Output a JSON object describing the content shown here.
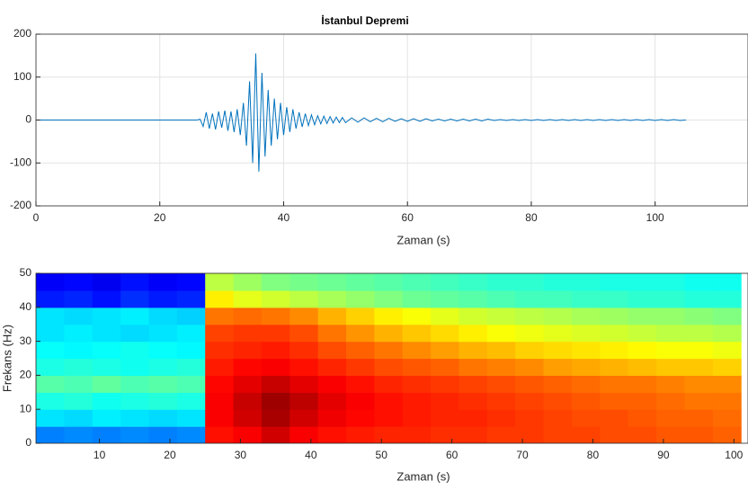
{
  "chart_data": [
    {
      "type": "line",
      "title": "İstanbul Depremi",
      "xlabel": "Zaman (s)",
      "color": "#0072bd",
      "grid": true,
      "xlim": [
        0,
        115
      ],
      "xticks": [
        0,
        20,
        40,
        60,
        80,
        100
      ],
      "ylim": [
        -200,
        200
      ],
      "yticks": [
        -200,
        -100,
        0,
        100,
        200
      ],
      "x": [
        0,
        26,
        26.5,
        27,
        27.5,
        28,
        28.5,
        29,
        29.5,
        30,
        30.5,
        31,
        31.5,
        32,
        32.5,
        33,
        33.5,
        34,
        34.5,
        35,
        35.5,
        36,
        36.5,
        37,
        37.5,
        38,
        38.5,
        39,
        39.5,
        40,
        40.5,
        41,
        41.5,
        42,
        42.5,
        43,
        43.5,
        44,
        44.5,
        45,
        45.5,
        46,
        46.5,
        47,
        47.5,
        48,
        48.5,
        49,
        49.5,
        50,
        51,
        52,
        53,
        54,
        55,
        56,
        57,
        58,
        59,
        60,
        61,
        62,
        63,
        64,
        65,
        66,
        67,
        68,
        69,
        70,
        71,
        72,
        73,
        74,
        75,
        76,
        77,
        78,
        79,
        80,
        81,
        82,
        83,
        84,
        85,
        86,
        87,
        88,
        89,
        90,
        91,
        92,
        93,
        94,
        95,
        96,
        97,
        98,
        99,
        100,
        101,
        102,
        103,
        104,
        105
      ],
      "values": [
        0,
        0,
        2,
        -15,
        18,
        -20,
        15,
        -22,
        20,
        -18,
        22,
        -25,
        20,
        -28,
        25,
        -35,
        40,
        -60,
        90,
        -100,
        155,
        -120,
        110,
        -85,
        70,
        -60,
        50,
        -45,
        40,
        -35,
        30,
        -28,
        25,
        -20,
        18,
        -16,
        15,
        -13,
        12,
        -11,
        10,
        -9,
        9,
        -8,
        8,
        -7,
        7,
        -6,
        6,
        -6,
        5,
        -5,
        5,
        -4,
        4,
        -4,
        4,
        -3,
        3,
        -3,
        3,
        -3,
        3,
        -2,
        2,
        -2,
        2,
        -2,
        2,
        -2,
        2,
        -2,
        2,
        -1,
        1,
        -1,
        1,
        -1,
        1,
        -1,
        1,
        -1,
        1,
        -1,
        1,
        -1,
        1,
        -1,
        1,
        -1,
        1,
        -1,
        1,
        -1,
        1,
        -1,
        1,
        -1,
        1,
        -1,
        1,
        -1,
        1,
        -1,
        0
      ]
    },
    {
      "type": "heatmap",
      "xlabel": "Zaman (s)",
      "ylabel": "Frekans (Hz)",
      "colormap": "jet",
      "clim": [
        0,
        10
      ],
      "xlim": [
        1,
        102
      ],
      "xticks": [
        10,
        20,
        30,
        40,
        50,
        60,
        70,
        80,
        90,
        100
      ],
      "ylim": [
        0,
        50
      ],
      "yticks": [
        0,
        10,
        20,
        30,
        40,
        50
      ],
      "xbins": [
        1,
        5,
        9,
        13,
        17,
        21,
        25,
        29,
        33,
        37,
        41,
        45,
        49,
        53,
        57,
        61,
        65,
        69,
        73,
        77,
        81,
        85,
        89,
        93,
        97,
        101
      ],
      "ybins": [
        0,
        5,
        10,
        15,
        20,
        25,
        30,
        35,
        40,
        45,
        50
      ],
      "values": [
        [
          2.5,
          2.6,
          2.5,
          2.6,
          2.5,
          2.6,
          8.6,
          8.8,
          9.2,
          8.8,
          8.6,
          8.5,
          8.4,
          8.4,
          8.3,
          8.3,
          8.2,
          8.2,
          8.1,
          8.1,
          8.0,
          8.0,
          7.9,
          7.9,
          7.8
        ],
        [
          3.5,
          3.4,
          3.6,
          3.5,
          3.4,
          3.5,
          8.8,
          9.2,
          9.6,
          9.2,
          8.9,
          8.7,
          8.6,
          8.5,
          8.4,
          8.4,
          8.3,
          8.2,
          8.1,
          8.0,
          8.0,
          7.9,
          7.8,
          7.8,
          7.7
        ],
        [
          4.0,
          4.1,
          3.9,
          4.0,
          4.1,
          4.0,
          8.8,
          9.3,
          9.7,
          9.4,
          9.0,
          8.8,
          8.6,
          8.5,
          8.4,
          8.3,
          8.2,
          8.1,
          8.0,
          7.9,
          7.8,
          7.8,
          7.7,
          7.6,
          7.6
        ],
        [
          4.6,
          4.5,
          4.7,
          4.5,
          4.6,
          4.5,
          8.7,
          9.0,
          9.3,
          9.0,
          8.8,
          8.6,
          8.4,
          8.3,
          8.2,
          8.1,
          8.0,
          7.9,
          7.8,
          7.7,
          7.6,
          7.6,
          7.5,
          7.4,
          7.4
        ],
        [
          4.0,
          4.1,
          4.0,
          3.9,
          4.0,
          4.1,
          8.5,
          8.7,
          8.8,
          8.6,
          8.4,
          8.2,
          8.0,
          7.9,
          7.8,
          7.6,
          7.5,
          7.4,
          7.2,
          7.1,
          7.0,
          6.9,
          6.8,
          6.8,
          6.7
        ],
        [
          3.8,
          3.7,
          3.8,
          3.9,
          3.8,
          3.7,
          8.3,
          8.4,
          8.5,
          8.3,
          8.0,
          7.8,
          7.6,
          7.4,
          7.2,
          7.0,
          6.9,
          6.7,
          6.6,
          6.5,
          6.4,
          6.3,
          6.2,
          6.2,
          6.1
        ],
        [
          3.5,
          3.6,
          3.5,
          3.4,
          3.5,
          3.6,
          8.1,
          8.2,
          8.2,
          8.0,
          7.6,
          7.3,
          7.0,
          6.8,
          6.6,
          6.4,
          6.2,
          6.1,
          6.0,
          5.9,
          5.8,
          5.7,
          5.6,
          5.6,
          5.5
        ],
        [
          3.5,
          3.4,
          3.5,
          3.6,
          3.4,
          3.3,
          7.6,
          7.7,
          7.6,
          7.4,
          7.0,
          6.7,
          6.4,
          6.2,
          6.0,
          5.8,
          5.7,
          5.6,
          5.5,
          5.4,
          5.3,
          5.2,
          5.2,
          5.1,
          5.0
        ],
        [
          1.5,
          1.6,
          1.4,
          1.7,
          1.5,
          1.6,
          6.4,
          6.0,
          5.8,
          5.6,
          5.4,
          5.2,
          5.0,
          4.8,
          4.7,
          4.6,
          4.5,
          4.4,
          4.4,
          4.3,
          4.3,
          4.2,
          4.2,
          4.1,
          4.1
        ],
        [
          1.2,
          1.3,
          1.1,
          1.4,
          1.2,
          1.3,
          5.6,
          5.3,
          5.0,
          4.9,
          4.8,
          4.7,
          4.6,
          4.5,
          4.4,
          4.3,
          4.2,
          4.2,
          4.1,
          4.1,
          4.0,
          4.0,
          4.0,
          3.9,
          3.9
        ]
      ]
    }
  ]
}
